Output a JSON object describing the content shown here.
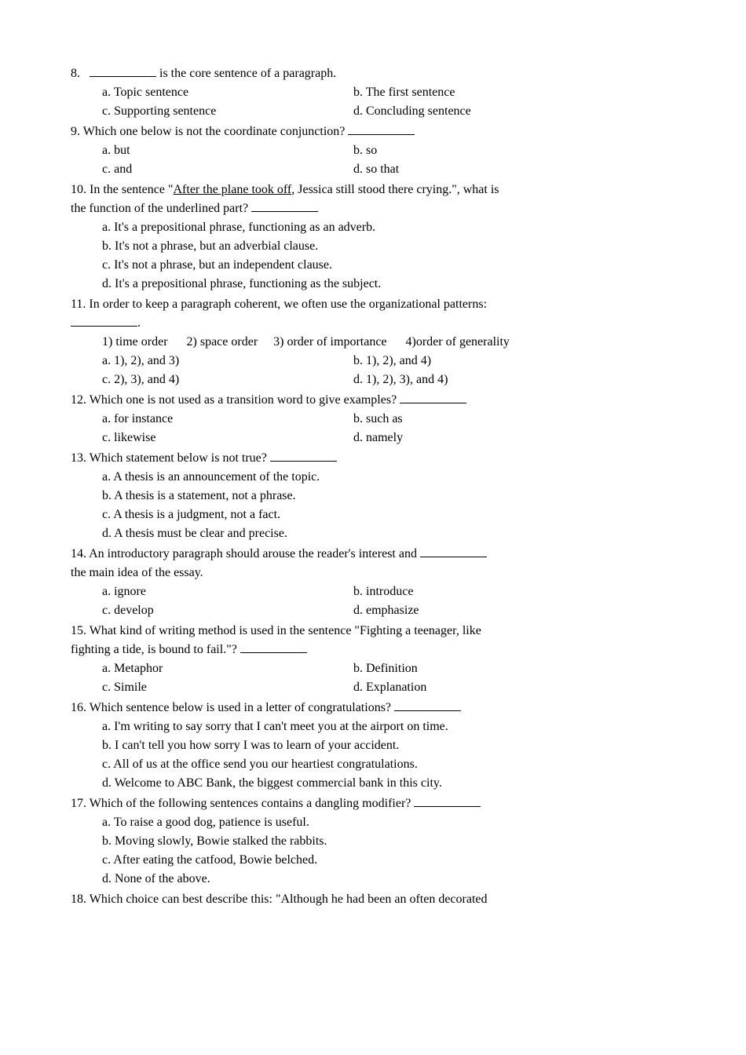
{
  "q8": {
    "stem_prefix": "8.",
    "stem_suffix": " is the core sentence of a paragraph.",
    "a": "a.   Topic sentence",
    "b": "b.   The first sentence",
    "c": "c.   Supporting sentence",
    "d": "d.   Concluding sentence"
  },
  "q9": {
    "stem_prefix": "9.   Which one below is not the coordinate conjunction? ",
    "a": "a.   but",
    "b": "b.   so",
    "c": "c.   and",
    "d": "d.   so that"
  },
  "q10": {
    "line1_prefix": "10. In the sentence \"",
    "line1_underlined": "After the plane took off",
    "line1_suffix": ", Jessica still stood there crying.\", what is",
    "line2_prefix": "the function of the underlined part? ",
    "a": "a.   It's a prepositional phrase, functioning as an adverb.",
    "b": "b.   It's not a phrase, but an adverbial clause.",
    "c": "c.   It's not a phrase, but an independent clause.",
    "d": "d.   It's a prepositional phrase, functioning as the subject."
  },
  "q11": {
    "line1": "11. In order to keep a paragraph coherent, we often use the organizational patterns:",
    "line2_suffix": ".",
    "sub": "1) time order      2) space order     3) order of importance      4)order of generality",
    "a": "a.   1), 2), and 3)",
    "b": "b.   1), 2), and 4)",
    "c": "c.   2), 3), and 4)",
    "d": "d.   1), 2), 3), and 4)"
  },
  "q12": {
    "stem_prefix": "12. Which one is not used as a transition word to give examples? ",
    "a": "a.   for instance",
    "b": "b.   such as",
    "c": "c.   likewise",
    "d": "d.   namely"
  },
  "q13": {
    "stem_prefix": "13. Which statement below is not true? ",
    "a": "a.   A thesis is an announcement of the topic.",
    "b": "b.   A thesis is a statement, not a phrase.",
    "c": "c.   A thesis is a judgment, not a fact.",
    "d": "d.   A thesis must be clear and precise."
  },
  "q14": {
    "line1_prefix": "14. An introductory paragraph should arouse the reader's interest and ",
    "line2": "the main idea of the essay.",
    "a": "a.   ignore",
    "b": "b.   introduce",
    "c": "c.   develop",
    "d": "d.   emphasize"
  },
  "q15": {
    "line1": "15. What kind of writing method is used in the sentence \"Fighting a teenager, like",
    "line2_prefix": "fighting a tide, is bound to fail.\"? ",
    "a": "a.   Metaphor",
    "b": "b.   Definition",
    "c": "c.   Simile",
    "d": "d.   Explanation"
  },
  "q16": {
    "stem_prefix": "16. Which sentence below is used in a letter of congratulations? ",
    "a": "a.   I'm writing to say sorry that I can't meet you at the airport on time.",
    "b": "b.   I can't tell you how sorry I was to learn of your accident.",
    "c": "c.   All of us at the office send you our heartiest congratulations.",
    "d": "d.   Welcome to ABC Bank, the biggest commercial bank in this city."
  },
  "q17": {
    "stem_prefix": "17. Which of the following sentences contains a dangling modifier? ",
    "a": "a.   To raise a good dog, patience is useful.",
    "b": "b.   Moving slowly, Bowie stalked the rabbits.",
    "c": "c.   After eating the catfood, Bowie belched.",
    "d": "d.   None of the above."
  },
  "q18": {
    "line1": "18. Which choice can best describe this: \"Although he had been an often decorated"
  }
}
